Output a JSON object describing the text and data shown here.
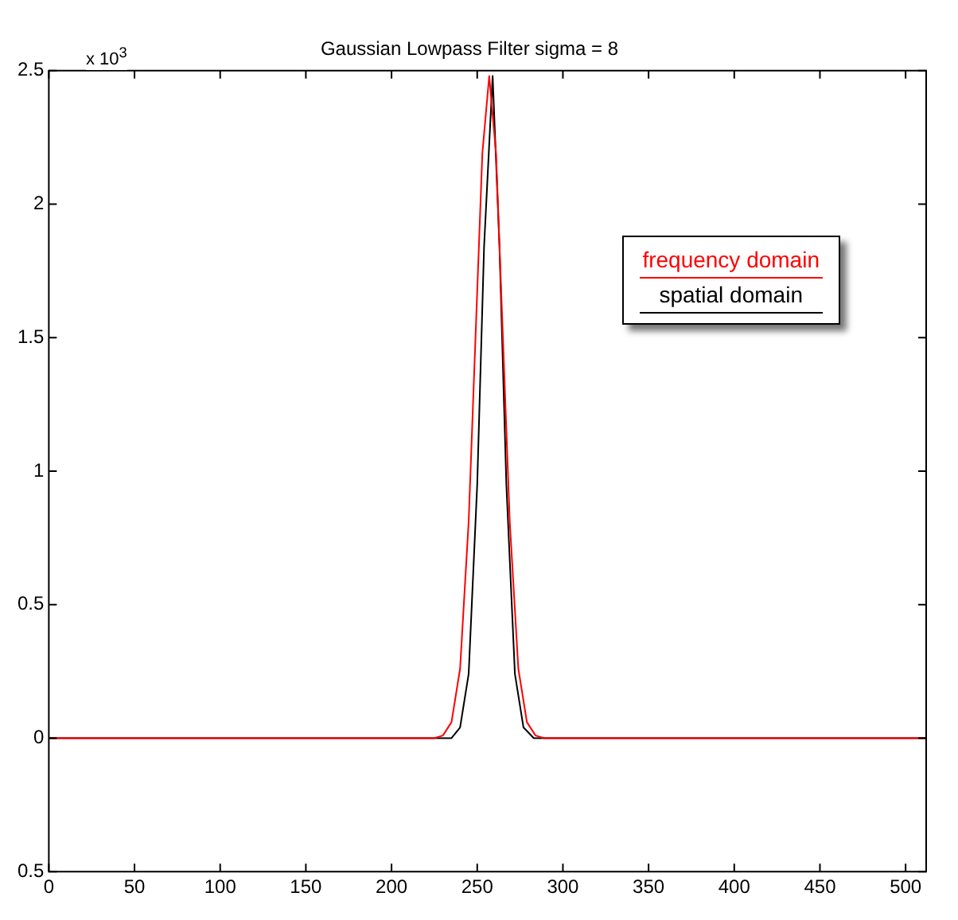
{
  "chart_data": {
    "type": "line",
    "title": "Gaussian Lowpass Filter sigma = 8",
    "annotations": [
      "x 10$^{3}$"
    ],
    "series": [
      {
        "name": "frequency domain",
        "color": "#ff0000",
        "x": [
          0,
          200,
          225,
          230,
          235,
          240,
          245,
          249,
          253,
          257,
          261,
          265,
          269,
          274,
          279,
          284,
          289,
          300,
          512
        ],
        "values": [
          0,
          0,
          0,
          0.01,
          0.06,
          0.26,
          0.81,
          1.5,
          2.19,
          2.48,
          2.19,
          1.5,
          0.81,
          0.26,
          0.06,
          0.01,
          0,
          0,
          0
        ]
      },
      {
        "name": "spatial domain",
        "color": "#000000",
        "x": [
          0,
          200,
          230,
          235,
          240,
          245,
          250,
          254,
          259,
          263,
          267,
          272,
          277,
          283,
          290,
          512
        ],
        "values": [
          0,
          0,
          0,
          0,
          0.04,
          0.24,
          0.95,
          1.84,
          2.48,
          1.84,
          0.95,
          0.24,
          0.04,
          0,
          0,
          0
        ]
      }
    ],
    "xlim": [
      0,
      512
    ],
    "xticks": [
      0,
      50,
      100,
      150,
      200,
      250,
      300,
      350,
      400,
      450,
      500
    ],
    "ylim": [
      -0.5,
      2.5
    ],
    "yticks": [
      {
        "value": -0.5,
        "label": "0.5"
      },
      0,
      0.5,
      1,
      1.5,
      2,
      2.5
    ],
    "grid": false,
    "legend": "top right",
    "marker": "none",
    "line_style": "solid"
  }
}
